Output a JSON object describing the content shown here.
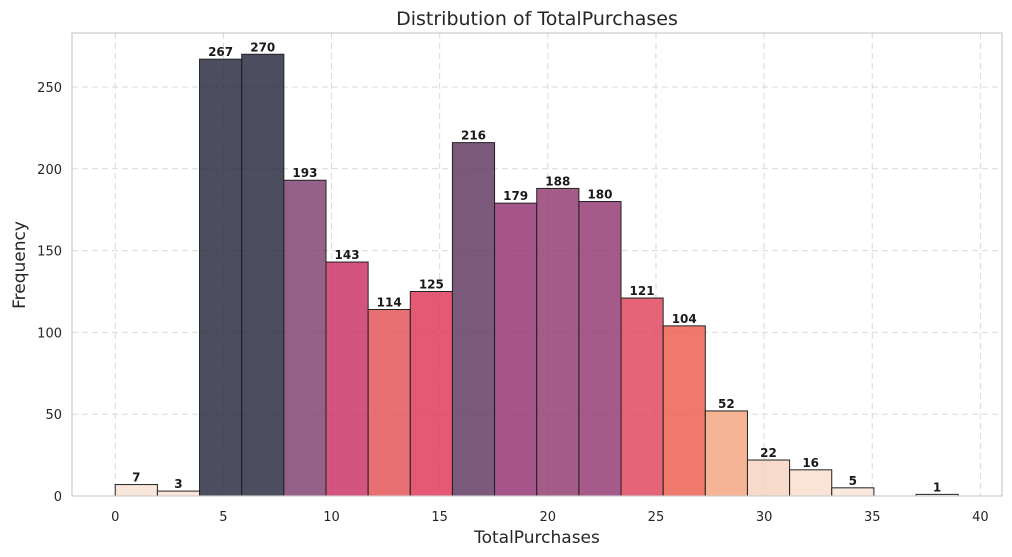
{
  "chart_data": {
    "type": "bar",
    "title": "Distribution of TotalPurchases",
    "xlabel": "TotalPurchases",
    "ylabel": "Frequency",
    "xlim": [
      -2,
      41
    ],
    "ylim": [
      0,
      283
    ],
    "xticks": [
      0,
      5,
      10,
      15,
      20,
      25,
      30,
      35,
      40
    ],
    "yticks": [
      0,
      50,
      100,
      150,
      200,
      250
    ],
    "grid": true,
    "bin_edges": [
      0,
      1.9487,
      3.8974,
      5.8462,
      7.7949,
      9.7436,
      11.6923,
      13.641,
      15.5897,
      17.5385,
      19.4872,
      21.4359,
      23.3846,
      25.3333,
      27.2821,
      29.2308,
      31.1795,
      33.1282,
      35.0769,
      37.0256,
      38.9744
    ],
    "values": [
      7,
      3,
      267,
      270,
      193,
      143,
      114,
      125,
      216,
      179,
      188,
      180,
      121,
      104,
      52,
      22,
      16,
      5,
      0,
      1
    ],
    "colors": [
      "#f7e0d2",
      "#f7e0d2",
      "#1f2237",
      "#1f2237",
      "#7a3a6c",
      "#c7295f",
      "#e24c4f",
      "#e02f52",
      "#5a2f5a",
      "#902b6e",
      "#8e336c",
      "#8f316c",
      "#df3d56",
      "#ee5847",
      "#f3a279",
      "#f5d1bb",
      "#f7ddcb",
      "#f7e4d7",
      "#f7e9df",
      "#f7e9df"
    ]
  }
}
